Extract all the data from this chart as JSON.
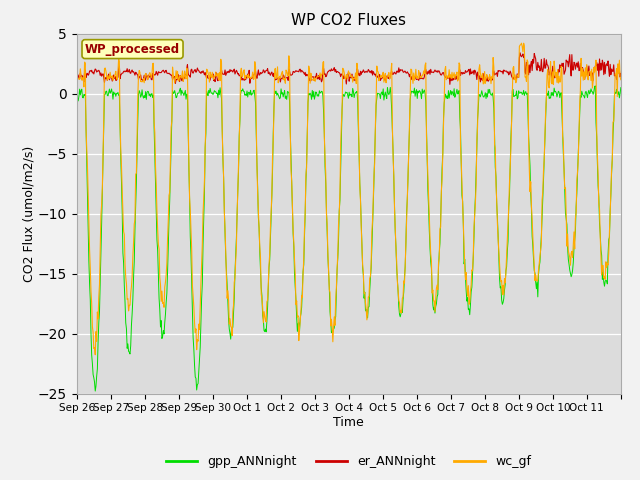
{
  "title": "WP CO2 Fluxes",
  "xlabel": "Time",
  "ylabel": "CO2 Flux (umol/m2/s)",
  "ylim": [
    -25,
    5
  ],
  "yticks": [
    -25,
    -20,
    -15,
    -10,
    -5,
    0,
    5
  ],
  "bg_color": "#dcdcdc",
  "fig_bg": "#f0f0f0",
  "line_colors": {
    "gpp": "#00dd00",
    "er": "#cc0000",
    "wc": "#ffaa00"
  },
  "legend_label": "WP_processed",
  "legend_bg": "#ffffbb",
  "legend_fc": "#990000",
  "n_days": 16,
  "half_hours_per_day": 48,
  "x_tick_labels": [
    "Sep 26",
    "Sep 27",
    "Sep 28",
    "Sep 29",
    "Sep 30",
    "Oct 1",
    "Oct 2",
    "Oct 3",
    "Oct 4",
    "Oct 5",
    "Oct 6",
    "Oct 7",
    "Oct 8",
    "Oct 9",
    "Oct 10",
    "Oct 11"
  ],
  "line_labels": [
    "gpp_ANNnight",
    "er_ANNnight",
    "wc_gf"
  ],
  "day_gpp_min": [
    -24.5,
    -21.5,
    -20.5,
    -24.5,
    -20.0,
    -19.5,
    -19.5,
    -20.0,
    -18.5,
    -18.5,
    -18.0,
    -18.0,
    -17.5,
    -16.0,
    -15.0,
    -16.0
  ],
  "day_wc_min": [
    -21.0,
    -17.5,
    -17.0,
    -20.5,
    -19.5,
    -19.0,
    -19.0,
    -19.5,
    -18.0,
    -18.0,
    -17.5,
    -17.5,
    -16.5,
    -15.5,
    -14.5,
    -15.5
  ]
}
